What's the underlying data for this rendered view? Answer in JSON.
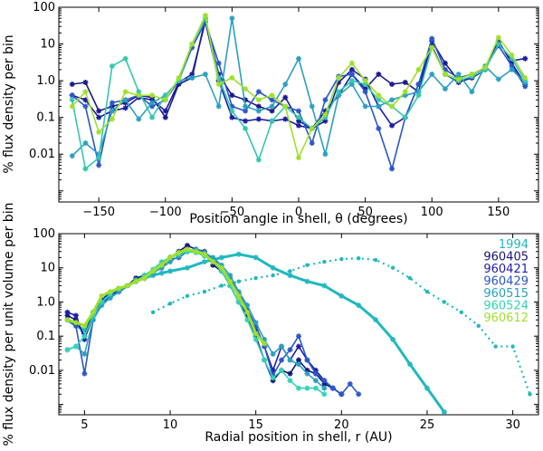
{
  "chart_data": [
    {
      "type": "line",
      "xlabel": "Position angle in shell, θ (degrees)",
      "ylabel": "% flux density per bin",
      "xlim": [
        -180,
        180
      ],
      "ylim": [
        0.0005,
        100
      ],
      "yscale": "log",
      "grid": false,
      "xticks": [
        -150,
        -100,
        -50,
        0,
        50,
        100,
        150
      ],
      "yticks": [
        {
          "v": 0.01,
          "label": "0.01"
        },
        {
          "v": 0.1,
          "label": "0.1"
        },
        {
          "v": 1,
          "label": "1.0"
        },
        {
          "v": 10,
          "label": "10"
        },
        {
          "v": 100,
          "label": "100"
        }
      ],
      "series": [
        {
          "color": "#1a1a8c",
          "x": [
            -170,
            -160,
            -150,
            -140,
            -130,
            -120,
            -110,
            -100,
            -90,
            -80,
            -70,
            -60,
            -50,
            -40,
            -30,
            -20,
            -10,
            0,
            10,
            20,
            30,
            40,
            50,
            60,
            70,
            80,
            90,
            100,
            110,
            120,
            130,
            140,
            150,
            160,
            170
          ],
          "y": [
            0.8,
            0.9,
            0.15,
            0.2,
            0.25,
            0.4,
            0.35,
            0.1,
            0.8,
            1.2,
            50,
            1.5,
            0.4,
            0.3,
            0.2,
            0.15,
            0.35,
            0.08,
            0.05,
            0.15,
            0.4,
            1.5,
            0.6,
            1.5,
            0.8,
            0.9,
            0.5,
            12,
            3,
            1.0,
            1.2,
            2,
            12,
            3,
            0.8
          ]
        },
        {
          "color": "#1c1c9e",
          "x": [
            -170,
            -160,
            -150,
            -140,
            -130,
            -120,
            -110,
            -100,
            -90,
            -80,
            -70,
            -60,
            -50,
            -40,
            -30,
            -20,
            -10,
            0,
            10,
            20,
            30,
            40,
            50,
            60,
            70,
            80,
            90,
            100,
            110,
            120,
            130,
            140,
            150,
            160,
            170
          ],
          "y": [
            0.4,
            0.3,
            0.1,
            0.15,
            0.18,
            0.35,
            0.3,
            0.15,
            0.9,
            1.5,
            40,
            1.0,
            0.1,
            0.08,
            0.09,
            0.08,
            0.09,
            0.06,
            0.05,
            0.08,
            0.9,
            2,
            1.1,
            0.2,
            0.06,
            0.1,
            0.8,
            9,
            1.5,
            0.9,
            1.2,
            2.0,
            11,
            3.5,
            4
          ]
        },
        {
          "color": "#2a56c8",
          "x": [
            -170,
            -160,
            -150,
            -140,
            -130,
            -120,
            -110,
            -100,
            -90,
            -80,
            -70,
            -60,
            -50,
            -40,
            -30,
            -20,
            -10,
            0,
            10,
            20,
            30,
            40,
            50,
            60,
            70,
            80,
            90,
            100,
            110,
            120,
            130,
            140,
            150,
            160,
            170
          ],
          "y": [
            0.4,
            0.2,
            0.005,
            0.25,
            0.3,
            0.4,
            0.2,
            0.3,
            1,
            8,
            40,
            3,
            0.2,
            0.15,
            0.5,
            0.3,
            0.2,
            0.15,
            0.02,
            0.3,
            1.3,
            1.5,
            0.5,
            0.05,
            0.004,
            0.1,
            0.8,
            14,
            2,
            1.2,
            1.5,
            2.2,
            9,
            2.5,
            0.7
          ]
        },
        {
          "color": "#2a9fc0",
          "x": [
            -170,
            -160,
            -150,
            -140,
            -130,
            -120,
            -110,
            -100,
            -90,
            -80,
            -70,
            -60,
            -50,
            -40,
            -30,
            -20,
            -10,
            0,
            10,
            20,
            30,
            40,
            50,
            60,
            70,
            80,
            90,
            100,
            110,
            120,
            130,
            140,
            150,
            160,
            170
          ],
          "y": [
            0.009,
            0.02,
            0.01,
            0.15,
            0.3,
            0.09,
            0.25,
            0.4,
            1.0,
            1.2,
            1.5,
            0.2,
            50,
            0.2,
            0.15,
            0.2,
            0.8,
            4,
            0.2,
            0.01,
            0.4,
            0.8,
            0.2,
            0.2,
            0.3,
            0.4,
            0.5,
            1.5,
            0.6,
            1.5,
            0.5,
            2.5,
            1.1,
            2.0,
            0.9
          ]
        },
        {
          "color": "#33c7b0",
          "x": [
            -170,
            -160,
            -150,
            -140,
            -130,
            -120,
            -110,
            -100,
            -90,
            -80,
            -70,
            -60,
            -50,
            -40,
            -30,
            -20,
            -10,
            0,
            10,
            20,
            30,
            40,
            50,
            60,
            70,
            80,
            90,
            100,
            110,
            120,
            130,
            140,
            150,
            160,
            170
          ],
          "y": [
            0.3,
            0.004,
            0.008,
            2.5,
            4,
            0.5,
            0.1,
            0.4,
            1,
            10,
            50,
            1.2,
            0.15,
            0.05,
            0.007,
            0.08,
            0.2,
            0.1,
            0.05,
            0.1,
            0.5,
            1.0,
            0.8,
            0.3,
            0.2,
            0.1,
            0.4,
            8,
            1.5,
            1.0,
            1.3,
            2.0,
            10,
            4,
            1.0
          ]
        },
        {
          "color": "#9fe02a",
          "x": [
            -170,
            -160,
            -150,
            -140,
            -130,
            -120,
            -110,
            -100,
            -90,
            -80,
            -70,
            -60,
            -50,
            -40,
            -30,
            -20,
            -10,
            0,
            10,
            20,
            30,
            40,
            50,
            60,
            70,
            80,
            90,
            100,
            110,
            120,
            130,
            140,
            150,
            160,
            170
          ],
          "y": [
            0.2,
            0.5,
            0.04,
            0.09,
            0.5,
            0.4,
            0.4,
            0.3,
            1.2,
            10,
            60,
            0.8,
            1.2,
            0.6,
            0.3,
            0.4,
            0.2,
            0.008,
            0.05,
            0.12,
            1.2,
            3,
            1.0,
            0.4,
            0.2,
            0.5,
            2,
            8,
            1.5,
            1.1,
            1.5,
            2.3,
            15,
            5,
            1.2
          ]
        }
      ]
    },
    {
      "type": "line",
      "xlabel": "Radial position in shell, r (AU)",
      "ylabel": "% flux density per unit volume per bin",
      "xlim": [
        3.5,
        31.5
      ],
      "ylim": [
        0.0005,
        100
      ],
      "yscale": "log",
      "grid": false,
      "xticks": [
        5,
        10,
        15,
        20,
        25,
        30
      ],
      "yticks": [
        {
          "v": 0.01,
          "label": "0.01"
        },
        {
          "v": 0.1,
          "label": "0.1"
        },
        {
          "v": 1,
          "label": "1.0"
        },
        {
          "v": 10,
          "label": "10"
        },
        {
          "v": 100,
          "label": "100"
        }
      ],
      "legend": {
        "placement": "top-right"
      },
      "series": [
        {
          "name": "1994",
          "color": "#20b8bf",
          "style": "solid-thick",
          "x": [
            4,
            4.5,
            5,
            5.5,
            6,
            6.5,
            7,
            7.5,
            8,
            8.5,
            9,
            9.5,
            10,
            11,
            12,
            13,
            14,
            15,
            16,
            17,
            18,
            19,
            20,
            21,
            22,
            23,
            24,
            25,
            26
          ],
          "y": [
            0.3,
            0.2,
            0.15,
            0.5,
            1.0,
            1.5,
            2,
            3,
            4,
            5,
            6,
            7,
            8,
            10,
            15,
            20,
            25,
            20,
            10,
            6,
            4,
            3,
            1.5,
            0.8,
            0.3,
            0.08,
            0.015,
            0.003,
            0.0006
          ]
        },
        {
          "name": "",
          "color": "#20b8bf",
          "style": "dotted",
          "x": [
            9,
            10,
            11,
            12,
            13,
            14,
            15,
            16,
            17,
            18,
            19,
            20,
            21,
            22,
            23,
            24,
            25,
            26,
            27,
            28,
            29,
            30,
            31
          ],
          "y": [
            0.5,
            0.9,
            1.5,
            2,
            3,
            4,
            5,
            6,
            8,
            12,
            15,
            18,
            19,
            17,
            10,
            5,
            2,
            1,
            0.5,
            0.2,
            0.05,
            0.05,
            0.002
          ]
        },
        {
          "name": "960405",
          "color": "#15157a",
          "style": "solid",
          "x": [
            4,
            4.5,
            5,
            5.5,
            6,
            6.5,
            7,
            7.5,
            8,
            8.5,
            9,
            9.5,
            10,
            10.5,
            11,
            11.5,
            12,
            12.5,
            13,
            13.5,
            14,
            14.5,
            15,
            15.5,
            16,
            16.5,
            17,
            17.5,
            18,
            18.5,
            19,
            19.5,
            20
          ],
          "y": [
            0.4,
            0.3,
            0.1,
            0.5,
            1.0,
            1.5,
            2.5,
            3,
            5,
            6,
            8,
            12,
            20,
            30,
            45,
            35,
            30,
            12,
            8,
            3,
            1.0,
            0.4,
            0.1,
            0.02,
            0.005,
            0.01,
            0.008,
            0.02,
            0.01,
            0.008,
            0.004,
            0.003,
            0.002
          ]
        },
        {
          "name": "960421",
          "color": "#1e1eaa",
          "style": "solid",
          "x": [
            4,
            4.5,
            5,
            5.5,
            6,
            6.5,
            7,
            7.5,
            8,
            8.5,
            9,
            9.5,
            10,
            10.5,
            11,
            11.5,
            12,
            12.5,
            13,
            13.5,
            14,
            14.5,
            15,
            15.5,
            16,
            16.5,
            17,
            17.5,
            18,
            18.5,
            19,
            19.5,
            20
          ],
          "y": [
            0.5,
            0.4,
            0.08,
            0.4,
            1.2,
            1.8,
            2,
            3,
            4,
            5,
            8,
            10,
            20,
            25,
            35,
            30,
            25,
            15,
            10,
            4,
            1.5,
            0.5,
            0.15,
            0.05,
            0.01,
            0.05,
            0.02,
            0.05,
            0.02,
            0.01,
            0.005,
            0.003,
            0.002
          ]
        },
        {
          "name": "960429",
          "color": "#2a56c8",
          "style": "solid",
          "x": [
            4,
            4.5,
            5,
            5.5,
            6,
            6.5,
            7,
            7.5,
            8,
            8.5,
            9,
            9.5,
            10,
            10.5,
            11,
            11.5,
            12,
            12.5,
            13,
            13.5,
            14,
            14.5,
            15,
            15.5,
            16,
            16.5,
            17,
            17.5,
            18,
            18.5,
            19,
            19.5,
            20,
            20.5,
            21
          ],
          "y": [
            0.3,
            0.2,
            0.008,
            0.3,
            0.9,
            1.5,
            2,
            3,
            4,
            5,
            8,
            12,
            18,
            20,
            30,
            32,
            28,
            18,
            10,
            5,
            1.8,
            0.6,
            0.2,
            0.05,
            0.007,
            0.02,
            0.04,
            0.1,
            0.02,
            0.008,
            0.005,
            0.003,
            0.002,
            0.004,
            0.002
          ]
        },
        {
          "name": "960515",
          "color": "#2a9fc0",
          "style": "solid",
          "x": [
            4,
            4.5,
            5,
            5.5,
            6,
            6.5,
            7,
            7.5,
            8,
            8.5,
            9,
            9.5,
            10,
            10.5,
            11,
            11.5,
            12,
            12.5,
            13,
            13.5,
            14,
            14.5,
            15,
            15.5,
            16,
            16.5,
            17,
            17.5,
            18,
            18.5,
            19
          ],
          "y": [
            0.04,
            0.05,
            0.03,
            0.3,
            0.8,
            1.3,
            2,
            3,
            4.5,
            5,
            7,
            10,
            15,
            22,
            30,
            35,
            28,
            20,
            12,
            6,
            2,
            0.8,
            0.25,
            0.08,
            0.03,
            0.05,
            0.02,
            0.015,
            0.008,
            0.005,
            0.003
          ]
        },
        {
          "name": "960524",
          "color": "#33d3b5",
          "style": "solid",
          "x": [
            4,
            4.5,
            5,
            5.5,
            6,
            6.5,
            7,
            7.5,
            8,
            8.5,
            9,
            9.5,
            10,
            10.5,
            11,
            11.5,
            12,
            12.5,
            13,
            13.5,
            14,
            14.5,
            15,
            15.5,
            16,
            16.5,
            17,
            17.5,
            18,
            18.5,
            19
          ],
          "y": [
            0.04,
            0.05,
            0.1,
            0.4,
            1.0,
            1.7,
            2.5,
            3,
            4,
            6,
            9,
            15,
            20,
            25,
            30,
            28,
            22,
            15,
            8,
            3,
            1.0,
            0.3,
            0.08,
            0.02,
            0.006,
            0.01,
            0.005,
            0.003,
            0.003,
            0.003,
            0.002
          ]
        },
        {
          "name": "960612",
          "color": "#9fe02a",
          "style": "solid-thick",
          "x": [
            4,
            4.5,
            5,
            5.5,
            6,
            6.5,
            7,
            7.5,
            8,
            8.5,
            9,
            9.5,
            10,
            10.5,
            11,
            11.5,
            12,
            12.5,
            13,
            13.5,
            14,
            14.5,
            15,
            15.5
          ],
          "y": [
            0.3,
            0.25,
            0.2,
            0.5,
            1.5,
            2,
            2.5,
            3,
            4,
            5,
            8,
            12,
            20,
            28,
            35,
            30,
            25,
            15,
            10,
            4,
            1.5,
            0.5,
            0.12,
            0.06
          ]
        }
      ]
    }
  ]
}
